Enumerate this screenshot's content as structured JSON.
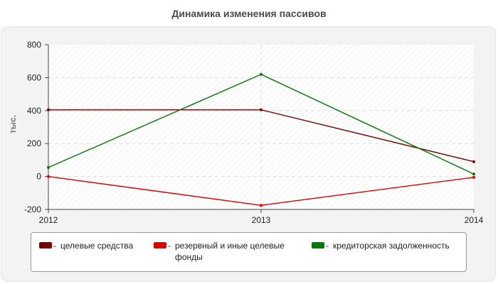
{
  "chart_data": {
    "type": "line",
    "title": "Динамика изменения пассивов",
    "ylabel": "тыс.",
    "xlabel": "",
    "categories": [
      "2012",
      "2013",
      "2014"
    ],
    "ylim": [
      -200,
      800
    ],
    "y_ticks": [
      "800",
      "600",
      "400",
      "200",
      "0",
      "-200"
    ],
    "grid": true,
    "legend_position": "bottom",
    "series": [
      {
        "name": "целевые средства",
        "color": "#7b0000",
        "values": [
          405,
          405,
          90
        ]
      },
      {
        "name": "резервный и иные целевые фонды",
        "color": "#e00000",
        "values": [
          0,
          -175,
          -5
        ]
      },
      {
        "name": "кредиторская задолженность",
        "color": "#007a00",
        "values": [
          55,
          620,
          15
        ]
      }
    ]
  },
  "legend": {
    "dash": "-",
    "items": [
      {
        "label": "целевые средства",
        "color": "#7b0000"
      },
      {
        "label": "резервный и иные целевые фонды",
        "color": "#e00000"
      },
      {
        "label": "кредиторская задолженность",
        "color": "#007a00"
      }
    ]
  }
}
